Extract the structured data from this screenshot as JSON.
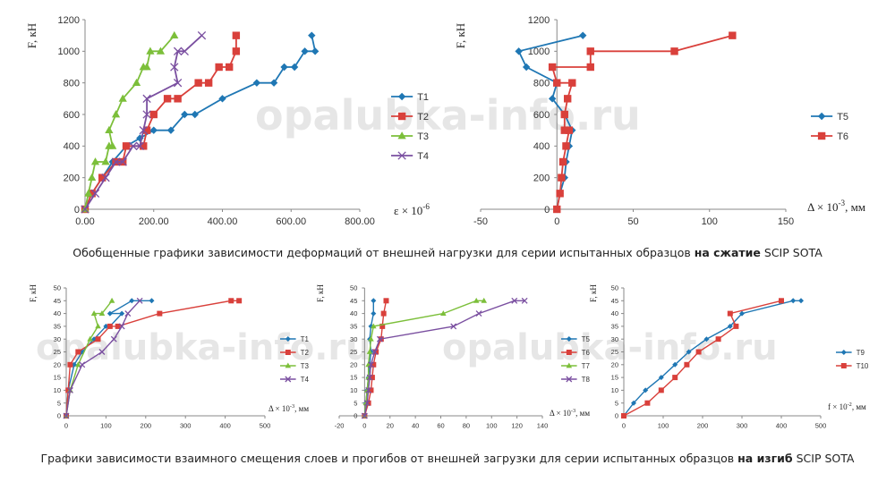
{
  "watermark": "opalubka-info.ru",
  "captions": {
    "top_prefix": "Обобщенные графики зависимости деформаций от внешней нагрузки для серии испытанных образцов ",
    "top_bold": "на сжатие",
    "top_suffix": " SCIP SOTA",
    "bottom_prefix": "Графики зависимости взаимного смещения слоев и прогибов от внешней загрузки для серии испытанных образцов ",
    "bottom_bold": "на изгиб",
    "bottom_suffix": " SCIP SOTA"
  },
  "colors": {
    "T1": "#1f77b4",
    "T2": "#d9403b",
    "T3": "#7cbf3a",
    "T4": "#7a4fa0"
  },
  "chart_data": [
    {
      "id": "chart1",
      "type": "line",
      "ylabel": "F, кН",
      "xlabel": "ε × 10",
      "xlabel_sup": "-6",
      "xlim": [
        0,
        800
      ],
      "ylim": [
        0,
        1200
      ],
      "xticks": [
        "0.00",
        "200.00",
        "400.00",
        "600.00",
        "800.00"
      ],
      "xtick_values": [
        0,
        200,
        400,
        600,
        800
      ],
      "yticks": [
        0,
        200,
        400,
        600,
        800,
        1000,
        1200
      ],
      "series": [
        {
          "name": "T1",
          "color": "#1f77b4",
          "marker": "diamond",
          "points": [
            [
              0,
              0
            ],
            [
              20,
              100
            ],
            [
              50,
              200
            ],
            [
              80,
              300
            ],
            [
              120,
              400
            ],
            [
              160,
              450
            ],
            [
              200,
              500
            ],
            [
              250,
              500
            ],
            [
              290,
              600
            ],
            [
              320,
              600
            ],
            [
              400,
              700
            ],
            [
              500,
              800
            ],
            [
              550,
              800
            ],
            [
              580,
              900
            ],
            [
              610,
              900
            ],
            [
              640,
              1000
            ],
            [
              670,
              1000
            ],
            [
              660,
              1100
            ]
          ]
        },
        {
          "name": "T2",
          "color": "#d9403b",
          "marker": "square",
          "points": [
            [
              0,
              0
            ],
            [
              20,
              100
            ],
            [
              50,
              200
            ],
            [
              90,
              300
            ],
            [
              110,
              300
            ],
            [
              120,
              400
            ],
            [
              170,
              400
            ],
            [
              180,
              500
            ],
            [
              200,
              600
            ],
            [
              240,
              700
            ],
            [
              270,
              700
            ],
            [
              330,
              800
            ],
            [
              360,
              800
            ],
            [
              390,
              900
            ],
            [
              420,
              900
            ],
            [
              440,
              1000
            ],
            [
              440,
              1100
            ]
          ]
        },
        {
          "name": "T3",
          "color": "#7cbf3a",
          "marker": "triangle",
          "points": [
            [
              0,
              0
            ],
            [
              10,
              100
            ],
            [
              20,
              200
            ],
            [
              30,
              300
            ],
            [
              60,
              300
            ],
            [
              70,
              400
            ],
            [
              80,
              400
            ],
            [
              70,
              500
            ],
            [
              90,
              600
            ],
            [
              110,
              700
            ],
            [
              150,
              800
            ],
            [
              170,
              900
            ],
            [
              180,
              900
            ],
            [
              190,
              1000
            ],
            [
              220,
              1000
            ],
            [
              260,
              1100
            ]
          ]
        },
        {
          "name": "T4",
          "color": "#7a4fa0",
          "marker": "x",
          "points": [
            [
              0,
              0
            ],
            [
              30,
              100
            ],
            [
              60,
              200
            ],
            [
              90,
              300
            ],
            [
              110,
              300
            ],
            [
              140,
              400
            ],
            [
              160,
              400
            ],
            [
              170,
              500
            ],
            [
              180,
              600
            ],
            [
              180,
              700
            ],
            [
              270,
              800
            ],
            [
              260,
              900
            ],
            [
              270,
              1000
            ],
            [
              290,
              1000
            ],
            [
              340,
              1100
            ]
          ]
        }
      ]
    },
    {
      "id": "chart2",
      "type": "line",
      "ylabel": "F, кН",
      "xlabel": "Δ × 10",
      "xlabel_sup": "-3",
      "xlabel_unit": ", мм",
      "xlim": [
        -50,
        150
      ],
      "ylim": [
        0,
        1200
      ],
      "xticks": [
        "-50",
        "0",
        "50",
        "100",
        "150"
      ],
      "xtick_values": [
        -50,
        0,
        50,
        100,
        150
      ],
      "yticks": [
        0,
        200,
        400,
        600,
        800,
        1000,
        1200
      ],
      "series": [
        {
          "name": "T5",
          "color": "#1f77b4",
          "marker": "diamond",
          "points": [
            [
              0,
              0
            ],
            [
              2,
              100
            ],
            [
              5,
              200
            ],
            [
              6,
              300
            ],
            [
              8,
              400
            ],
            [
              10,
              500
            ],
            [
              5,
              600
            ],
            [
              -3,
              700
            ],
            [
              0,
              800
            ],
            [
              -20,
              900
            ],
            [
              -25,
              1000
            ],
            [
              17,
              1100
            ]
          ]
        },
        {
          "name": "T6",
          "color": "#d9403b",
          "marker": "square",
          "points": [
            [
              0,
              0
            ],
            [
              2,
              100
            ],
            [
              3,
              200
            ],
            [
              4,
              300
            ],
            [
              6,
              400
            ],
            [
              8,
              500
            ],
            [
              5,
              500
            ],
            [
              5,
              600
            ],
            [
              7,
              700
            ],
            [
              10,
              800
            ],
            [
              0,
              800
            ],
            [
              -3,
              900
            ],
            [
              22,
              900
            ],
            [
              22,
              1000
            ],
            [
              77,
              1000
            ],
            [
              115,
              1100
            ]
          ]
        }
      ]
    },
    {
      "id": "chart3",
      "type": "line",
      "ylabel": "F, кН",
      "xlabel": "Δ × 10",
      "xlabel_sup": "-3",
      "xlabel_unit": ", мм",
      "xlim": [
        0,
        500
      ],
      "ylim": [
        0,
        50
      ],
      "xticks": [
        "0",
        "100",
        "200",
        "300",
        "400",
        "500"
      ],
      "xtick_values": [
        0,
        100,
        200,
        300,
        400,
        500
      ],
      "yticks": [
        0,
        5,
        10,
        15,
        20,
        25,
        30,
        35,
        40,
        45,
        50
      ],
      "series": [
        {
          "name": "T1",
          "color": "#1f77b4",
          "marker": "diamond",
          "points": [
            [
              0,
              0
            ],
            [
              5,
              10
            ],
            [
              20,
              20
            ],
            [
              40,
              25
            ],
            [
              70,
              30
            ],
            [
              100,
              35
            ],
            [
              110,
              35
            ],
            [
              140,
              40
            ],
            [
              110,
              40
            ],
            [
              165,
              45
            ],
            [
              215,
              45
            ]
          ]
        },
        {
          "name": "T2",
          "color": "#d9403b",
          "marker": "square",
          "points": [
            [
              0,
              0
            ],
            [
              5,
              10
            ],
            [
              10,
              20
            ],
            [
              30,
              25
            ],
            [
              80,
              30
            ],
            [
              110,
              35
            ],
            [
              130,
              35
            ],
            [
              235,
              40
            ],
            [
              415,
              45
            ],
            [
              435,
              45
            ]
          ]
        },
        {
          "name": "T3",
          "color": "#7cbf3a",
          "marker": "triangle",
          "points": [
            [
              0,
              0
            ],
            [
              10,
              10
            ],
            [
              30,
              20
            ],
            [
              60,
              30
            ],
            [
              80,
              35
            ],
            [
              70,
              40
            ],
            [
              90,
              40
            ],
            [
              115,
              45
            ]
          ]
        },
        {
          "name": "T4",
          "color": "#7a4fa0",
          "marker": "x",
          "points": [
            [
              0,
              0
            ],
            [
              10,
              10
            ],
            [
              40,
              20
            ],
            [
              90,
              25
            ],
            [
              120,
              30
            ],
            [
              140,
              35
            ],
            [
              155,
              40
            ],
            [
              185,
              45
            ]
          ]
        }
      ]
    },
    {
      "id": "chart4",
      "type": "line",
      "ylabel": "F, кН",
      "xlabel": "Δ × 10",
      "xlabel_sup": "-3",
      "xlabel_unit": ", мм",
      "xlim": [
        -20,
        140
      ],
      "ylim": [
        0,
        50
      ],
      "xticks": [
        "-20",
        "0",
        "20",
        "40",
        "60",
        "80",
        "100",
        "120",
        "140"
      ],
      "xtick_values": [
        -20,
        0,
        20,
        40,
        60,
        80,
        100,
        120,
        140
      ],
      "yticks": [
        0,
        5,
        10,
        15,
        20,
        25,
        30,
        35,
        40,
        45,
        50
      ],
      "series": [
        {
          "name": "T5",
          "color": "#1f77b4",
          "marker": "diamond",
          "points": [
            [
              0,
              0
            ],
            [
              1,
              5
            ],
            [
              2,
              10
            ],
            [
              3,
              15
            ],
            [
              4,
              20
            ],
            [
              5,
              25
            ],
            [
              4,
              30
            ],
            [
              5,
              35
            ],
            [
              7,
              40
            ],
            [
              7,
              45
            ]
          ]
        },
        {
          "name": "T6",
          "color": "#d9403b",
          "marker": "square",
          "points": [
            [
              0,
              0
            ],
            [
              3,
              5
            ],
            [
              5,
              10
            ],
            [
              6,
              15
            ],
            [
              7,
              20
            ],
            [
              9,
              25
            ],
            [
              13,
              30
            ],
            [
              14,
              35
            ],
            [
              15,
              40
            ],
            [
              17,
              45
            ]
          ]
        },
        {
          "name": "T7",
          "color": "#7cbf3a",
          "marker": "triangle",
          "points": [
            [
              0,
              0
            ],
            [
              1,
              5
            ],
            [
              2,
              10
            ],
            [
              3,
              15
            ],
            [
              3,
              20
            ],
            [
              4,
              25
            ],
            [
              5,
              30
            ],
            [
              7,
              35
            ],
            [
              62,
              40
            ],
            [
              88,
              45
            ],
            [
              94,
              45
            ]
          ]
        },
        {
          "name": "T8",
          "color": "#7a4fa0",
          "marker": "x",
          "points": [
            [
              0,
              0
            ],
            [
              2,
              5
            ],
            [
              3,
              10
            ],
            [
              4,
              15
            ],
            [
              5,
              20
            ],
            [
              8,
              25
            ],
            [
              12,
              30
            ],
            [
              70,
              35
            ],
            [
              90,
              40
            ],
            [
              118,
              45
            ],
            [
              126,
              45
            ]
          ]
        }
      ]
    },
    {
      "id": "chart5",
      "type": "line",
      "ylabel": "F, кН",
      "xlabel": "f × 10",
      "xlabel_sup": "-2",
      "xlabel_unit": ", мм",
      "xlim": [
        0,
        500
      ],
      "ylim": [
        0,
        50
      ],
      "xticks": [
        "0",
        "100",
        "200",
        "300",
        "400",
        "500"
      ],
      "xtick_values": [
        0,
        100,
        200,
        300,
        400,
        500
      ],
      "yticks": [
        0,
        5,
        10,
        15,
        20,
        25,
        30,
        35,
        40,
        45,
        50
      ],
      "series": [
        {
          "name": "T9",
          "color": "#1f77b4",
          "marker": "diamond",
          "points": [
            [
              0,
              0
            ],
            [
              25,
              5
            ],
            [
              55,
              10
            ],
            [
              95,
              15
            ],
            [
              130,
              20
            ],
            [
              165,
              25
            ],
            [
              210,
              30
            ],
            [
              270,
              35
            ],
            [
              300,
              40
            ],
            [
              430,
              45
            ],
            [
              450,
              45
            ]
          ]
        },
        {
          "name": "T10",
          "color": "#d9403b",
          "marker": "square",
          "points": [
            [
              0,
              0
            ],
            [
              60,
              5
            ],
            [
              95,
              10
            ],
            [
              130,
              15
            ],
            [
              160,
              20
            ],
            [
              190,
              25
            ],
            [
              240,
              30
            ],
            [
              285,
              35
            ],
            [
              270,
              40
            ],
            [
              400,
              45
            ]
          ]
        }
      ]
    }
  ]
}
